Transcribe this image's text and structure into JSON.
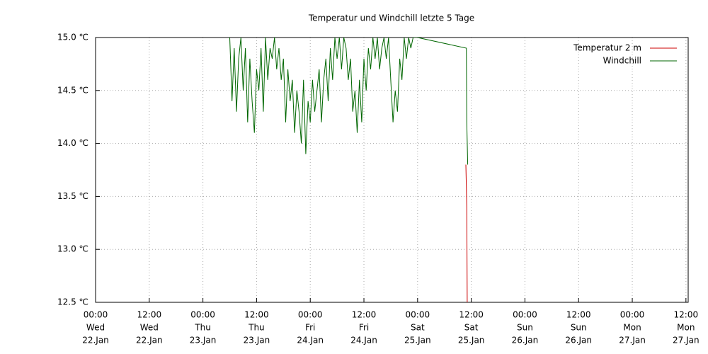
{
  "chart_data": {
    "type": "line",
    "title": "Temperatur und Windchill letzte 5 Tage",
    "xlim": [
      0,
      132.5
    ],
    "xticks": [
      {
        "value": 0,
        "label": "00:00",
        "weekday": "Wed",
        "date": "22.Jan"
      },
      {
        "value": 12,
        "label": "12:00",
        "weekday": "Wed",
        "date": "22.Jan"
      },
      {
        "value": 24,
        "label": "00:00",
        "weekday": "Thu",
        "date": "23.Jan"
      },
      {
        "value": 36,
        "label": "12:00",
        "weekday": "Thu",
        "date": "23.Jan"
      },
      {
        "value": 48,
        "label": "00:00",
        "weekday": "Fri",
        "date": "24.Jan"
      },
      {
        "value": 60,
        "label": "12:00",
        "weekday": "Fri",
        "date": "24.Jan"
      },
      {
        "value": 72,
        "label": "00:00",
        "weekday": "Sat",
        "date": "25.Jan"
      },
      {
        "value": 84,
        "label": "12:00",
        "weekday": "Sat",
        "date": "25.Jan"
      },
      {
        "value": 96,
        "label": "00:00",
        "weekday": "Sun",
        "date": "26.Jan"
      },
      {
        "value": 108,
        "label": "12:00",
        "weekday": "Sun",
        "date": "26.Jan"
      },
      {
        "value": 120,
        "label": "00:00",
        "weekday": "Mon",
        "date": "27.Jan"
      },
      {
        "value": 132,
        "label": "12:00",
        "weekday": "Mon",
        "date": "27.Jan"
      }
    ],
    "ylim": [
      12.5,
      15.0
    ],
    "yticks": [
      {
        "value": 12.5,
        "label": "12.5 ℃"
      },
      {
        "value": 13.0,
        "label": "13.0 ℃"
      },
      {
        "value": 13.5,
        "label": "13.5 ℃"
      },
      {
        "value": 14.0,
        "label": "14.0 ℃"
      },
      {
        "value": 14.5,
        "label": "14.5 ℃"
      },
      {
        "value": 15.0,
        "label": "15.0 ℃"
      }
    ],
    "grid": true,
    "legend": "top-right",
    "series": [
      {
        "name": "Temperatur 2 m",
        "color": "#cc0000",
        "x": [
          82.8,
          83.0,
          83.1
        ],
        "values": [
          13.8,
          13.4,
          12.5
        ]
      },
      {
        "name": "Windchill",
        "color": "#006600",
        "x": [
          30,
          30.5,
          31,
          31.5,
          32,
          32.5,
          33,
          33.5,
          34,
          34.5,
          35,
          35.5,
          36,
          36.5,
          37,
          37.5,
          38,
          38.5,
          39,
          39.5,
          40,
          40.5,
          41,
          41.5,
          42,
          42.5,
          43,
          43.5,
          44,
          44.5,
          45,
          45.5,
          46,
          46.5,
          47,
          47.5,
          48,
          48.5,
          49,
          49.5,
          50,
          50.5,
          51,
          51.5,
          52,
          52.5,
          53,
          53.5,
          54,
          54.5,
          55,
          55.5,
          56,
          56.5,
          57,
          57.5,
          58,
          58.5,
          59,
          59.5,
          60,
          60.5,
          61,
          61.5,
          62,
          62.5,
          63,
          63.5,
          64,
          64.5,
          65,
          65.5,
          66,
          66.5,
          67,
          67.5,
          68,
          68.5,
          69,
          69.5,
          70,
          70.5,
          71,
          71.5,
          72,
          82.9,
          83.0,
          83.2
        ],
        "values": [
          15.0,
          14.4,
          14.9,
          14.3,
          14.8,
          15.0,
          14.5,
          14.9,
          14.2,
          14.8,
          14.4,
          14.1,
          14.7,
          14.5,
          14.9,
          14.3,
          15.0,
          14.6,
          14.9,
          14.8,
          15.0,
          14.7,
          14.9,
          14.6,
          14.8,
          14.2,
          14.7,
          14.4,
          14.6,
          14.1,
          14.5,
          14.3,
          14.0,
          14.6,
          13.9,
          14.4,
          14.2,
          14.6,
          14.3,
          14.5,
          14.7,
          14.2,
          14.6,
          14.8,
          14.4,
          14.9,
          14.6,
          15.0,
          14.8,
          15.0,
          14.7,
          15.0,
          14.9,
          14.6,
          14.8,
          14.3,
          14.5,
          14.1,
          14.6,
          14.2,
          14.8,
          14.5,
          14.9,
          14.7,
          15.0,
          14.8,
          15.0,
          14.7,
          14.9,
          15.0,
          14.8,
          15.0,
          14.6,
          14.2,
          14.5,
          14.3,
          14.8,
          14.6,
          15.0,
          14.8,
          15.0,
          14.9,
          15.0,
          15.0,
          15.0,
          14.9,
          14.2,
          13.8
        ]
      }
    ]
  }
}
